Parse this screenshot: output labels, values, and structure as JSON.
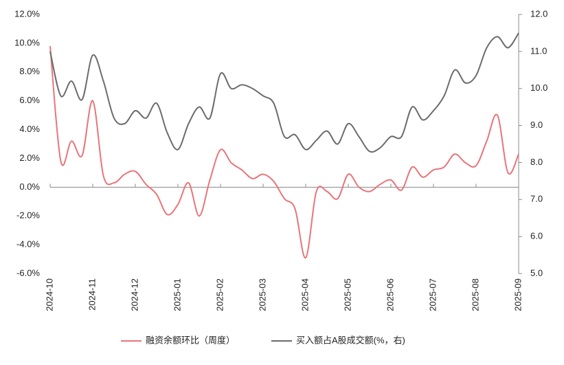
{
  "chart_data": {
    "type": "line",
    "categories": [
      "2024-10",
      null,
      null,
      null,
      "2024-11",
      null,
      null,
      null,
      "2024-12",
      null,
      null,
      null,
      "2025-01",
      null,
      null,
      null,
      "2025-02",
      null,
      null,
      null,
      "2025-03",
      null,
      null,
      null,
      "2025-04",
      null,
      null,
      null,
      "2025-05",
      null,
      null,
      null,
      "2025-06",
      null,
      null,
      null,
      "2025-07",
      null,
      null,
      null,
      "2025-08",
      null,
      null,
      null,
      "2025-09"
    ],
    "series": [
      {
        "name": "融资余额环比（周度）",
        "color": "#e8747a",
        "values": [
          9.8,
          1.8,
          3.2,
          2.2,
          6.0,
          0.8,
          0.3,
          0.9,
          1.1,
          0.2,
          -0.5,
          -1.9,
          -1.2,
          0.3,
          -2.0,
          0.5,
          2.6,
          1.7,
          1.2,
          0.6,
          0.9,
          0.4,
          -0.8,
          -1.5,
          -4.9,
          -0.3,
          -0.3,
          -0.8,
          0.9,
          0.0,
          -0.3,
          0.2,
          0.5,
          -0.2,
          1.4,
          0.7,
          1.2,
          1.4,
          2.3,
          1.7,
          1.5,
          3.2,
          5.0,
          1.0,
          2.3
        ]
      },
      {
        "name": "买入额占A股成交额(%，右)",
        "color": "#6b6b6b",
        "axis": "y2",
        "values": [
          11.0,
          9.8,
          10.2,
          9.7,
          10.9,
          10.2,
          9.2,
          9.05,
          9.4,
          9.2,
          9.6,
          8.8,
          8.35,
          9.05,
          9.5,
          9.2,
          10.4,
          10.0,
          10.1,
          10.0,
          9.8,
          9.6,
          8.7,
          8.75,
          8.35,
          8.6,
          8.85,
          8.5,
          9.05,
          8.7,
          8.3,
          8.4,
          8.7,
          8.7,
          9.5,
          9.15,
          9.4,
          9.8,
          10.5,
          10.15,
          10.35,
          11.1,
          11.4,
          11.1,
          11.5
        ]
      }
    ],
    "ylim": [
      -6,
      12
    ],
    "yticks": [
      {
        "value": -6,
        "label": "-6.0%"
      },
      {
        "value": -4,
        "label": "-4.0%"
      },
      {
        "value": -2,
        "label": "-2.0%"
      },
      {
        "value": 0,
        "label": "0.0%"
      },
      {
        "value": 2,
        "label": "2.0%"
      },
      {
        "value": 4,
        "label": "4.0%"
      },
      {
        "value": 6,
        "label": "6.0%"
      },
      {
        "value": 8,
        "label": "8.0%"
      },
      {
        "value": 10,
        "label": "10.0%"
      },
      {
        "value": 12,
        "label": "12.0%"
      }
    ],
    "y2lim": [
      5,
      12
    ],
    "y2ticks": [
      {
        "value": 5,
        "label": "5.0"
      },
      {
        "value": 6,
        "label": "6.0"
      },
      {
        "value": 7,
        "label": "7.0"
      },
      {
        "value": 8,
        "label": "8.0"
      },
      {
        "value": 9,
        "label": "9.0"
      },
      {
        "value": 10,
        "label": "10.0"
      },
      {
        "value": 11,
        "label": "11.0"
      },
      {
        "value": 12,
        "label": "12.0"
      }
    ],
    "legend": "bottom"
  }
}
